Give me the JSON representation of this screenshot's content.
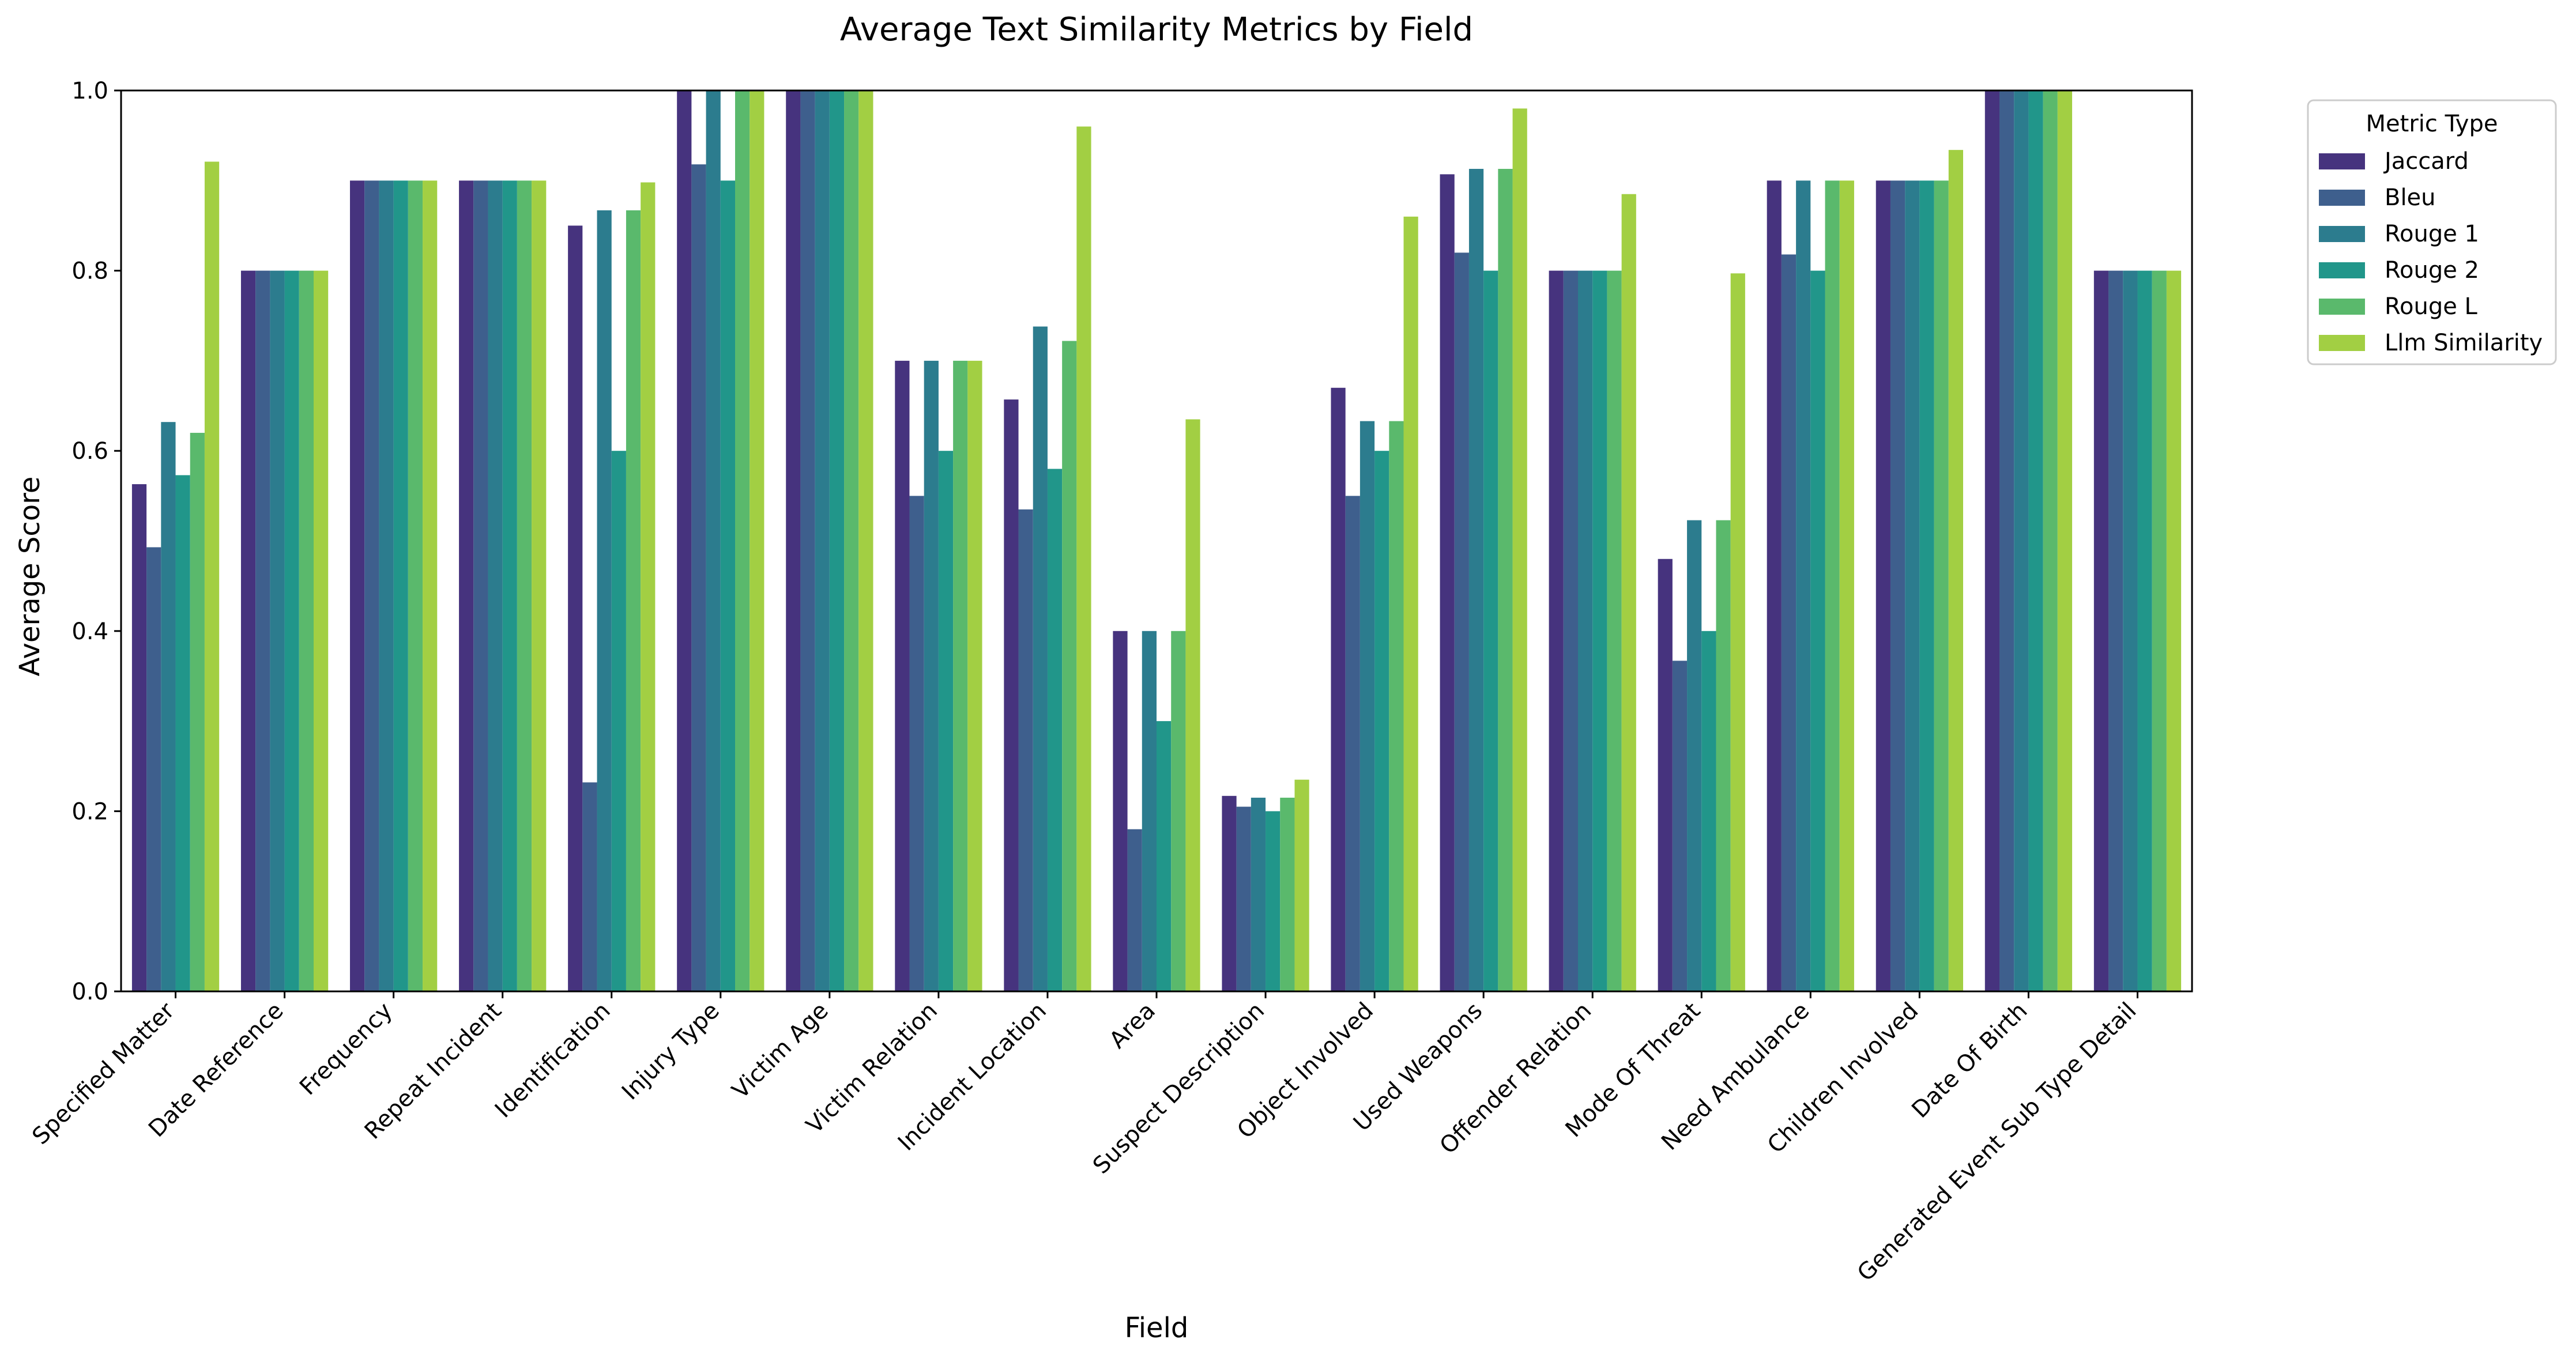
{
  "chart_data": {
    "type": "bar",
    "title": "Average Text Similarity Metrics by Field",
    "xlabel": "Field",
    "ylabel": "Average Score",
    "ylim": [
      0,
      1.0
    ],
    "yticks": [
      "0.0",
      "0.2",
      "0.4",
      "0.6",
      "0.8",
      "1.0"
    ],
    "grid": false,
    "legend": {
      "title": "Metric Type",
      "placement": "outside-top-right"
    },
    "categories": [
      "Specified Matter",
      "Date Reference",
      "Frequency",
      "Repeat Incident",
      "Identification",
      "Injury Type",
      "Victim Age",
      "Victim Relation",
      "Incident Location",
      "Area",
      "Suspect Description",
      "Object Involved",
      "Used Weapons",
      "Offender Relation",
      "Mode Of Threat",
      "Need Ambulance",
      "Children Involved",
      "Date Of Birth",
      "Generated Event Sub Type Detail"
    ],
    "series": [
      {
        "name": "Jaccard",
        "color": "#46337e",
        "values": [
          0.563,
          0.8,
          0.9,
          0.9,
          0.85,
          1.0,
          1.0,
          0.7,
          0.657,
          0.4,
          0.217,
          0.67,
          0.907,
          0.8,
          0.48,
          0.9,
          0.9,
          1.0,
          0.8
        ]
      },
      {
        "name": "Bleu",
        "color": "#3e5f8d",
        "values": [
          0.493,
          0.8,
          0.9,
          0.9,
          0.232,
          0.918,
          1.0,
          0.55,
          0.535,
          0.18,
          0.205,
          0.55,
          0.82,
          0.8,
          0.367,
          0.818,
          0.9,
          1.0,
          0.8
        ]
      },
      {
        "name": "Rouge 1",
        "color": "#2c7c8e",
        "values": [
          0.632,
          0.8,
          0.9,
          0.9,
          0.867,
          1.0,
          1.0,
          0.7,
          0.738,
          0.4,
          0.215,
          0.633,
          0.913,
          0.8,
          0.523,
          0.9,
          0.9,
          1.0,
          0.8
        ]
      },
      {
        "name": "Rouge 2",
        "color": "#21968a",
        "values": [
          0.573,
          0.8,
          0.9,
          0.9,
          0.6,
          0.9,
          1.0,
          0.6,
          0.58,
          0.3,
          0.2,
          0.6,
          0.8,
          0.8,
          0.4,
          0.8,
          0.9,
          1.0,
          0.8
        ]
      },
      {
        "name": "Rouge L",
        "color": "#5ab96c",
        "values": [
          0.62,
          0.8,
          0.9,
          0.9,
          0.867,
          1.0,
          1.0,
          0.7,
          0.722,
          0.4,
          0.215,
          0.633,
          0.913,
          0.8,
          0.523,
          0.9,
          0.9,
          1.0,
          0.8
        ]
      },
      {
        "name": "Llm Similarity",
        "color": "#a2cf43",
        "values": [
          0.921,
          0.8,
          0.9,
          0.9,
          0.898,
          1.0,
          1.0,
          0.7,
          0.96,
          0.635,
          0.235,
          0.86,
          0.98,
          0.885,
          0.797,
          0.9,
          0.934,
          1.0,
          0.8
        ]
      }
    ]
  }
}
